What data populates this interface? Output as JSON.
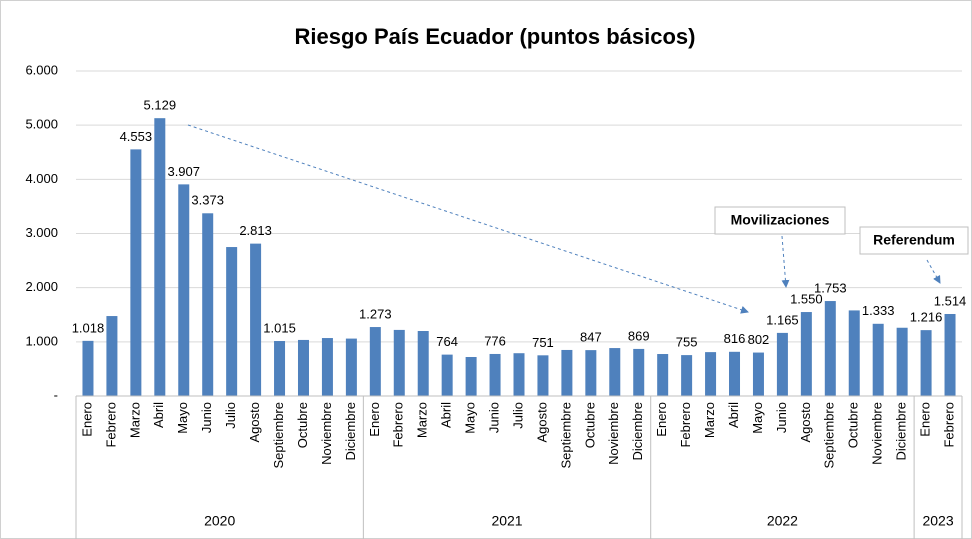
{
  "chart_data": {
    "type": "bar",
    "title": "Riesgo País Ecuador (puntos básicos)",
    "color": "#4f81bd",
    "categories": [
      "Enero",
      "Febrero",
      "Marzo",
      "Abril",
      "Mayo",
      "Junio",
      "Julio",
      "Agosto",
      "Septiembre",
      "Octubre",
      "Noviembre",
      "Diciembre",
      "Enero",
      "Febrero",
      "Marzo",
      "Abril",
      "Mayo",
      "Junio",
      "Julio",
      "Agosto",
      "Septiembre",
      "Octubre",
      "Noviembre",
      "Diciembre",
      "Enero",
      "Febrero",
      "Marzo",
      "Abril",
      "Mayo",
      "Junio",
      "Agosto",
      "Septiembre",
      "Octubre",
      "Noviembre",
      "Diciembre",
      "Enero",
      "Febrero"
    ],
    "years": [
      {
        "label": "2020",
        "span": 12
      },
      {
        "label": "2021",
        "span": 12
      },
      {
        "label": "2022",
        "span": 11
      },
      {
        "label": "2023",
        "span": 2
      }
    ],
    "values": [
      1018,
      1476,
      4553,
      5129,
      3907,
      3373,
      2750,
      2813,
      1015,
      1035,
      1070,
      1060,
      1273,
      1220,
      1200,
      764,
      720,
      776,
      790,
      751,
      850,
      847,
      885,
      869,
      775,
      755,
      810,
      816,
      802,
      1165,
      1550,
      1753,
      1580,
      1333,
      1260,
      1216,
      1514
    ],
    "value_labels": [
      "1.018",
      null,
      "4.553",
      "5.129",
      "3.907",
      "3.373",
      null,
      "2.813",
      "1.015",
      null,
      null,
      null,
      "1.273",
      null,
      null,
      "764",
      null,
      "776",
      null,
      "751",
      null,
      "847",
      null,
      "869",
      null,
      "755",
      null,
      "816",
      "802",
      "1.165",
      "1.550",
      "1.753",
      null,
      "1.333",
      null,
      "1.216",
      "1.514"
    ],
    "ylim": [
      0,
      6000
    ],
    "yticks": [
      {
        "value": 0,
        "label": "-"
      },
      {
        "value": 1000,
        "label": "1.000"
      },
      {
        "value": 2000,
        "label": "2.000"
      },
      {
        "value": 3000,
        "label": "3.000"
      },
      {
        "value": 4000,
        "label": "4.000"
      },
      {
        "value": 5000,
        "label": "5.000"
      },
      {
        "value": 6000,
        "label": "6.000"
      }
    ],
    "grid": true,
    "annotations": [
      "Movilizaciones",
      "Referendum"
    ]
  }
}
